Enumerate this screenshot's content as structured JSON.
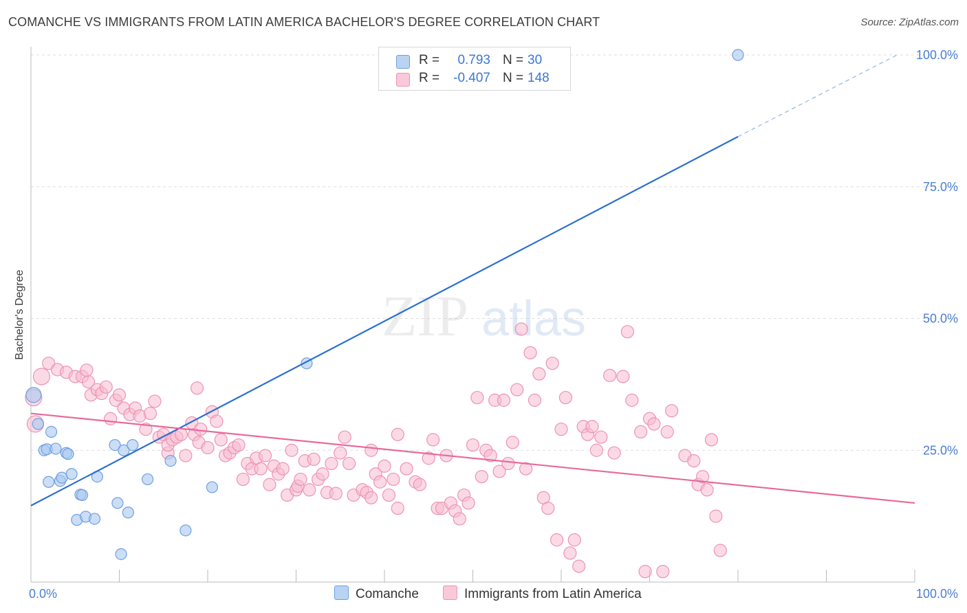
{
  "title": "COMANCHE VS IMMIGRANTS FROM LATIN AMERICA BACHELOR'S DEGREE CORRELATION CHART",
  "source": "Source: ZipAtlas.com",
  "watermark": {
    "zip": "ZIP",
    "atlas": "atlas"
  },
  "legend": {
    "series1": {
      "r_label": "R =",
      "r_value": "0.793",
      "n_label": "N =",
      "n_value": "30"
    },
    "series2": {
      "r_label": "R =",
      "r_value": "-0.407",
      "n_label": "N =",
      "n_value": "148"
    }
  },
  "bottom_legend": {
    "series1": "Comanche",
    "series2": "Immigrants from Latin America"
  },
  "colors": {
    "blue_fill": "#a9c8f0",
    "blue_stroke": "#6f9fe0",
    "blue_line": "#2a6fd0",
    "pink_fill": "#f7bcd0",
    "pink_stroke": "#ec93b3",
    "pink_line": "#e8699a",
    "tick_color": "#4a7fd0",
    "grid": "#dddddd"
  },
  "chart_data": {
    "type": "scatter",
    "title": "COMANCHE VS IMMIGRANTS FROM LATIN AMERICA BACHELOR'S DEGREE CORRELATION CHART",
    "xlabel": "",
    "ylabel": "Bachelor's Degree",
    "xlim": [
      0,
      100
    ],
    "ylim": [
      0,
      100
    ],
    "x_tick_labels": [
      "0.0%",
      "100.0%"
    ],
    "y_ticks": [
      25,
      50,
      75,
      100
    ],
    "y_tick_labels": [
      "25.0%",
      "50.0%",
      "75.0%",
      "100.0%"
    ],
    "grid": true,
    "series": [
      {
        "name": "Comanche",
        "r": 0.793,
        "n": 30,
        "trend": {
          "x0": 0,
          "y0": 14.5,
          "x1": 80,
          "y1": 84.5,
          "dash_to_x": 98,
          "dash_to_y": 100
        },
        "points": [
          [
            0.3,
            35.5
          ],
          [
            0.8,
            30
          ],
          [
            1.5,
            25
          ],
          [
            1.8,
            25.2
          ],
          [
            2,
            19
          ],
          [
            2.3,
            28.5
          ],
          [
            2.8,
            25.3
          ],
          [
            3.3,
            19.2
          ],
          [
            3.5,
            19.8
          ],
          [
            4,
            24.5
          ],
          [
            4.2,
            24.3
          ],
          [
            4.6,
            20.5
          ],
          [
            5.2,
            11.8
          ],
          [
            5.6,
            16.6
          ],
          [
            5.8,
            16.5
          ],
          [
            6.2,
            12.4
          ],
          [
            7.2,
            12
          ],
          [
            7.5,
            20
          ],
          [
            9.5,
            26
          ],
          [
            9.8,
            15
          ],
          [
            10.2,
            5.3
          ],
          [
            10.5,
            25
          ],
          [
            11,
            13.2
          ],
          [
            11.5,
            26
          ],
          [
            13.2,
            19.5
          ],
          [
            15.8,
            23
          ],
          [
            17.5,
            9.8
          ],
          [
            20.5,
            18
          ],
          [
            31.2,
            41.5
          ],
          [
            80,
            100
          ]
        ]
      },
      {
        "name": "Immigrants from Latin America",
        "r": -0.407,
        "n": 148,
        "trend": {
          "x0": 0,
          "y0": 32,
          "x1": 100,
          "y1": 15
        },
        "points": [
          [
            0.3,
            35
          ],
          [
            0.5,
            30
          ],
          [
            1.2,
            39
          ],
          [
            2,
            41.5
          ],
          [
            3,
            40.3
          ],
          [
            4,
            39.8
          ],
          [
            5,
            39
          ],
          [
            5.8,
            39
          ],
          [
            6.5,
            38
          ],
          [
            6.3,
            40.2
          ],
          [
            6.8,
            35.5
          ],
          [
            7.5,
            36.5
          ],
          [
            8,
            35.8
          ],
          [
            8.5,
            37
          ],
          [
            9,
            31
          ],
          [
            9.6,
            34.5
          ],
          [
            10,
            35.5
          ],
          [
            10.5,
            33
          ],
          [
            11.2,
            31.8
          ],
          [
            11.8,
            33
          ],
          [
            12.3,
            31.5
          ],
          [
            13,
            29
          ],
          [
            13.5,
            32
          ],
          [
            14,
            34.3
          ],
          [
            14.5,
            27.5
          ],
          [
            15,
            28
          ],
          [
            15.5,
            24.5
          ],
          [
            15.5,
            26
          ],
          [
            16,
            27
          ],
          [
            16.5,
            27.5
          ],
          [
            17,
            28
          ],
          [
            17.5,
            24
          ],
          [
            18.5,
            28
          ],
          [
            18.2,
            30.2
          ],
          [
            18.8,
            36.8
          ],
          [
            19,
            26.5
          ],
          [
            19.2,
            29
          ],
          [
            20,
            25.5
          ],
          [
            20.5,
            32.3
          ],
          [
            21,
            30.5
          ],
          [
            21.5,
            27
          ],
          [
            22,
            24
          ],
          [
            22.5,
            24.5
          ],
          [
            23,
            25.5
          ],
          [
            23.5,
            26
          ],
          [
            24,
            19.5
          ],
          [
            24.5,
            22.5
          ],
          [
            25,
            21.5
          ],
          [
            25.5,
            23.5
          ],
          [
            26,
            21.5
          ],
          [
            26.5,
            24
          ],
          [
            27,
            18.5
          ],
          [
            27.5,
            22
          ],
          [
            28,
            20.5
          ],
          [
            28.5,
            21.5
          ],
          [
            29,
            16.5
          ],
          [
            29.5,
            25
          ],
          [
            30,
            17.5
          ],
          [
            30.2,
            18.2
          ],
          [
            30.5,
            19.5
          ],
          [
            31,
            23
          ],
          [
            31.5,
            17.5
          ],
          [
            32,
            23.3
          ],
          [
            32.5,
            19.5
          ],
          [
            33,
            20.5
          ],
          [
            33.5,
            17
          ],
          [
            34,
            22.5
          ],
          [
            34.5,
            16.8
          ],
          [
            35,
            24.5
          ],
          [
            35.5,
            27.5
          ],
          [
            36,
            22.5
          ],
          [
            36.5,
            16.5
          ],
          [
            37.5,
            17.5
          ],
          [
            38,
            17
          ],
          [
            38.5,
            16
          ],
          [
            38.5,
            25
          ],
          [
            39,
            20.5
          ],
          [
            39.5,
            19
          ],
          [
            40,
            22
          ],
          [
            40.5,
            16.5
          ],
          [
            41,
            19.5
          ],
          [
            41.5,
            14
          ],
          [
            41.5,
            28
          ],
          [
            42.5,
            21.5
          ],
          [
            43.5,
            19
          ],
          [
            44,
            18.5
          ],
          [
            45,
            23.5
          ],
          [
            45.5,
            27
          ],
          [
            46,
            14
          ],
          [
            46.5,
            14
          ],
          [
            47,
            24
          ],
          [
            47.5,
            15
          ],
          [
            48,
            13.5
          ],
          [
            48.5,
            12
          ],
          [
            49,
            16.5
          ],
          [
            49.5,
            15
          ],
          [
            50,
            26
          ],
          [
            50.5,
            35
          ],
          [
            51,
            20
          ],
          [
            51.5,
            25
          ],
          [
            52,
            24
          ],
          [
            52.5,
            34.5
          ],
          [
            53,
            21
          ],
          [
            53.5,
            34.5
          ],
          [
            54,
            22.5
          ],
          [
            54.5,
            26.5
          ],
          [
            55,
            36.5
          ],
          [
            55.5,
            48
          ],
          [
            56,
            21.5
          ],
          [
            56.5,
            43.5
          ],
          [
            57,
            34.5
          ],
          [
            57.5,
            39.5
          ],
          [
            58,
            16
          ],
          [
            58.5,
            14
          ],
          [
            59,
            41.5
          ],
          [
            59.5,
            8
          ],
          [
            60,
            29
          ],
          [
            60.5,
            35
          ],
          [
            61,
            5.5
          ],
          [
            61.5,
            8
          ],
          [
            62,
            3
          ],
          [
            62.5,
            29.5
          ],
          [
            63,
            28
          ],
          [
            63.5,
            29.5
          ],
          [
            64,
            25
          ],
          [
            64.5,
            27.5
          ],
          [
            65.5,
            39.2
          ],
          [
            66,
            24.5
          ],
          [
            67,
            39
          ],
          [
            67.5,
            47.5
          ],
          [
            68,
            34.5
          ],
          [
            69,
            28.5
          ],
          [
            69.5,
            2
          ],
          [
            70,
            31
          ],
          [
            70.5,
            30
          ],
          [
            71.5,
            2
          ],
          [
            72,
            28.5
          ],
          [
            72.5,
            32.5
          ],
          [
            74,
            24
          ],
          [
            75,
            23
          ],
          [
            75.5,
            18.5
          ],
          [
            76,
            20
          ],
          [
            76.5,
            17.5
          ],
          [
            77,
            27
          ],
          [
            77.5,
            12.5
          ],
          [
            78,
            6
          ]
        ]
      }
    ]
  }
}
